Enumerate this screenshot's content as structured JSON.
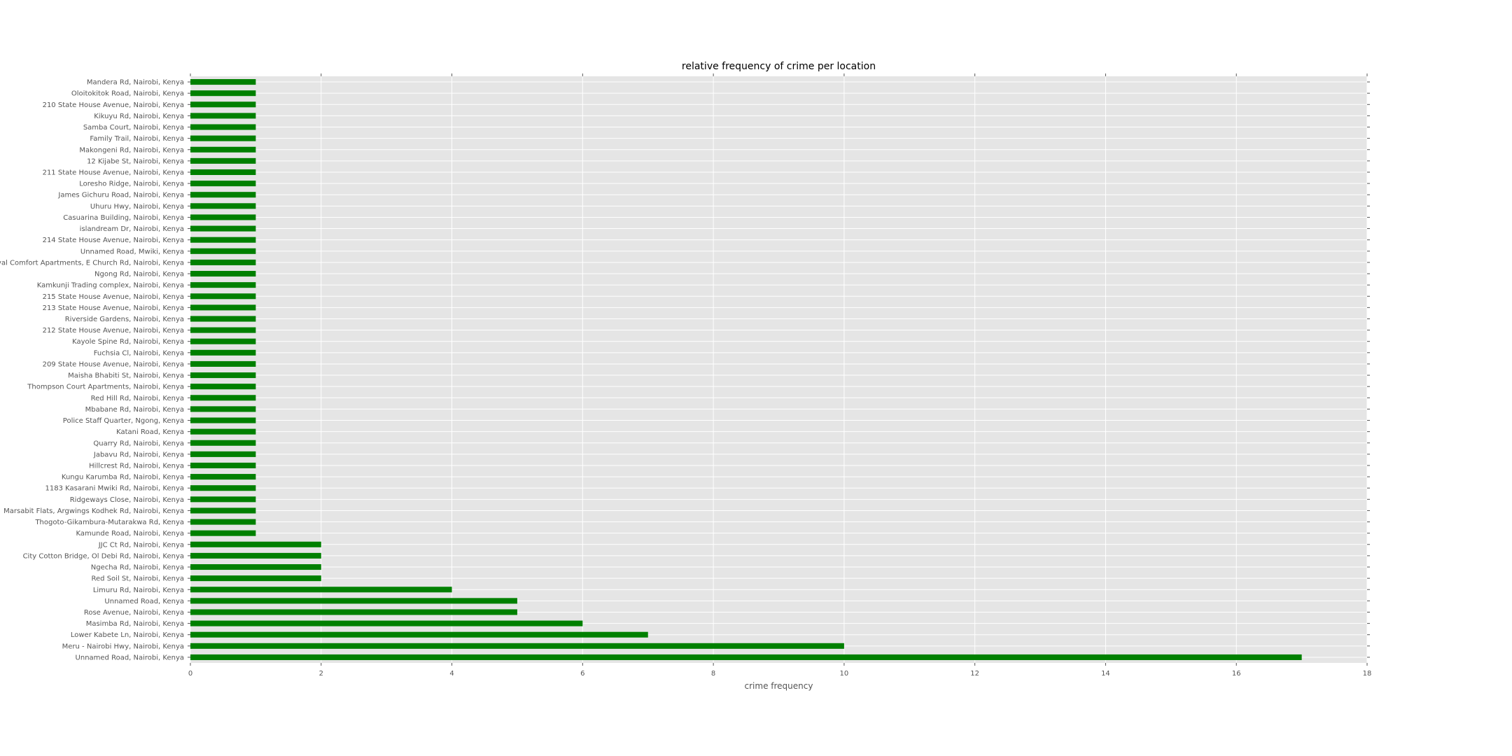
{
  "chart_data": {
    "type": "bar",
    "orientation": "horizontal",
    "title": "relative frequency of crime per location",
    "xlabel": "crime frequency",
    "ylabel": "",
    "xlim": [
      0,
      18
    ],
    "xticks": [
      0,
      2,
      4,
      6,
      8,
      10,
      12,
      14,
      16,
      18
    ],
    "grid": true,
    "legend": "none",
    "colors": {
      "bar": "#008000",
      "plot_background": "#e5e5e5",
      "grid": "#ffffff",
      "tick_text": "#555555"
    },
    "categories": [
      "Mandera Rd, Nairobi, Kenya",
      "Oloitokitok Road, Nairobi, Kenya",
      "210 State House Avenue, Nairobi, Kenya",
      "Kikuyu Rd, Nairobi, Kenya",
      "Samba Court, Nairobi, Kenya",
      "Family Trail, Nairobi, Kenya",
      "Makongeni Rd, Nairobi, Kenya",
      "12 Kijabe St, Nairobi, Kenya",
      "211 State House Avenue, Nairobi, Kenya",
      "Loresho Ridge, Nairobi, Kenya",
      "James Gichuru Road, Nairobi, Kenya",
      "Uhuru Hwy, Nairobi, Kenya",
      "Casuarina Building, Nairobi, Kenya",
      "islandream Dr, Nairobi, Kenya",
      "214 State House Avenue, Nairobi, Kenya",
      "Unnamed Road, Mwiki, Kenya",
      "Royal Comfort Apartments, E Church Rd, Nairobi, Kenya",
      "Ngong Rd, Nairobi, Kenya",
      "Kamkunji Trading complex, Nairobi, Kenya",
      "215 State House Avenue, Nairobi, Kenya",
      "213 State House Avenue, Nairobi, Kenya",
      "Riverside Gardens, Nairobi, Kenya",
      "212 State House Avenue, Nairobi, Kenya",
      "Kayole Spine Rd, Nairobi, Kenya",
      "Fuchsia Cl, Nairobi, Kenya",
      "209 State House Avenue, Nairobi, Kenya",
      "Maisha Bhabiti St, Nairobi, Kenya",
      "Thompson Court Apartments, Nairobi, Kenya",
      "Red Hill Rd, Nairobi, Kenya",
      "Mbabane Rd, Nairobi, Kenya",
      "Police Staff Quarter, Ngong, Kenya",
      "Katani Road, Kenya",
      "Quarry Rd, Nairobi, Kenya",
      "Jabavu Rd, Nairobi, Kenya",
      "Hillcrest Rd, Nairobi, Kenya",
      "Kungu Karumba Rd, Nairobi, Kenya",
      "1183 Kasarani Mwiki Rd, Nairobi, Kenya",
      "Ridgeways Close, Nairobi, Kenya",
      "Marsabit Flats, Argwings Kodhek Rd, Nairobi, Kenya",
      "Thogoto-Gikambura-Mutarakwa Rd, Kenya",
      "Kamunde Road, Nairobi, Kenya",
      "JJC Ct Rd, Nairobi, Kenya",
      "City Cotton Bridge, Ol Debi Rd, Nairobi, Kenya",
      "Ngecha Rd, Nairobi, Kenya",
      "Red Soil St, Nairobi, Kenya",
      "Limuru Rd, Nairobi, Kenya",
      "Unnamed Road, Kenya",
      "Rose Avenue, Nairobi, Kenya",
      "Masimba Rd, Nairobi, Kenya",
      "Lower Kabete Ln, Nairobi, Kenya",
      "Meru - Nairobi Hwy, Nairobi, Kenya",
      "Unnamed Road, Nairobi, Kenya"
    ],
    "values": [
      1,
      1,
      1,
      1,
      1,
      1,
      1,
      1,
      1,
      1,
      1,
      1,
      1,
      1,
      1,
      1,
      1,
      1,
      1,
      1,
      1,
      1,
      1,
      1,
      1,
      1,
      1,
      1,
      1,
      1,
      1,
      1,
      1,
      1,
      1,
      1,
      1,
      1,
      1,
      1,
      1,
      2,
      2,
      2,
      2,
      4,
      5,
      5,
      6,
      7,
      10,
      17
    ]
  }
}
